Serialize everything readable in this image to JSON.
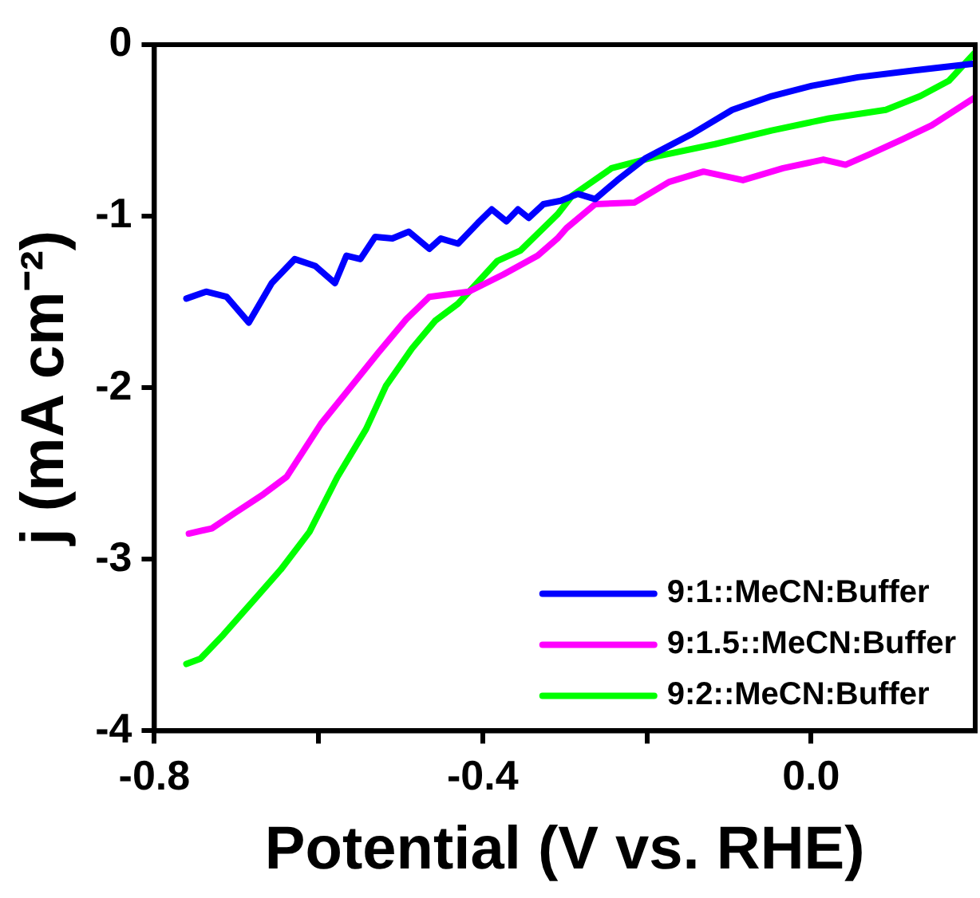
{
  "chart_data": {
    "type": "line",
    "xlabel": "Potential (V vs. RHE)",
    "ylabel": "j (mA cm⁻²)",
    "xlim": [
      -0.8,
      0.2
    ],
    "xticks": [
      -0.8,
      {
        "value": -0.6,
        "label": null
      },
      -0.4,
      {
        "value": -0.2,
        "label": null
      },
      {
        "value": 0,
        "label": "0.0"
      }
    ],
    "ylim": [
      -4,
      0
    ],
    "yticks": [
      -4,
      -3,
      -2,
      -1,
      0
    ],
    "grid": false,
    "legend": "bottom right",
    "series": [
      {
        "name": "9:1::MeCN:Buffer",
        "color": "#0000ff",
        "x": [
          -0.761,
          -0.737,
          -0.712,
          -0.685,
          -0.657,
          -0.629,
          -0.604,
          -0.58,
          -0.566,
          -0.549,
          -0.531,
          -0.51,
          -0.49,
          -0.465,
          -0.451,
          -0.43,
          -0.406,
          -0.389,
          -0.371,
          -0.357,
          -0.344,
          -0.326,
          -0.305,
          -0.284,
          -0.263,
          -0.236,
          -0.201,
          -0.145,
          -0.096,
          -0.048,
          0.001,
          0.057,
          0.126,
          0.199
        ],
        "values": [
          -1.48,
          -1.44,
          -1.47,
          -1.62,
          -1.39,
          -1.25,
          -1.29,
          -1.39,
          -1.23,
          -1.25,
          -1.12,
          -1.13,
          -1.09,
          -1.19,
          -1.13,
          -1.16,
          -1.04,
          -0.96,
          -1.03,
          -0.96,
          -1.01,
          -0.93,
          -0.91,
          -0.87,
          -0.9,
          -0.79,
          -0.66,
          -0.52,
          -0.38,
          -0.3,
          -0.24,
          -0.19,
          -0.15,
          -0.11
        ]
      },
      {
        "name": "9:1.5::MeCN:Buffer",
        "color": "#ff00ff",
        "x": [
          -0.758,
          -0.73,
          -0.702,
          -0.667,
          -0.639,
          -0.597,
          -0.57,
          -0.528,
          -0.493,
          -0.465,
          -0.417,
          -0.375,
          -0.333,
          -0.309,
          -0.298,
          -0.263,
          -0.215,
          -0.173,
          -0.131,
          -0.083,
          -0.034,
          0.015,
          0.042,
          0.071,
          0.112,
          0.147,
          0.199
        ],
        "values": [
          -2.85,
          -2.82,
          -2.73,
          -2.62,
          -2.52,
          -2.21,
          -2.05,
          -1.8,
          -1.6,
          -1.47,
          -1.44,
          -1.34,
          -1.23,
          -1.13,
          -1.07,
          -0.93,
          -0.92,
          -0.8,
          -0.74,
          -0.79,
          -0.72,
          -0.67,
          -0.7,
          -0.64,
          -0.55,
          -0.47,
          -0.31
        ]
      },
      {
        "name": "9:2::MeCN:Buffer",
        "color": "#00ff00",
        "x": [
          -0.761,
          -0.744,
          -0.716,
          -0.681,
          -0.646,
          -0.611,
          -0.577,
          -0.542,
          -0.518,
          -0.486,
          -0.458,
          -0.43,
          -0.382,
          -0.354,
          -0.309,
          -0.291,
          -0.243,
          -0.187,
          -0.117,
          -0.048,
          0.022,
          0.091,
          0.133,
          0.168,
          0.199
        ],
        "values": [
          -3.61,
          -3.58,
          -3.44,
          -3.25,
          -3.06,
          -2.84,
          -2.52,
          -2.24,
          -1.99,
          -1.77,
          -1.61,
          -1.51,
          -1.26,
          -1.2,
          -0.99,
          -0.88,
          -0.72,
          -0.65,
          -0.58,
          -0.5,
          -0.43,
          -0.38,
          -0.3,
          -0.21,
          -0.05
        ]
      }
    ]
  }
}
